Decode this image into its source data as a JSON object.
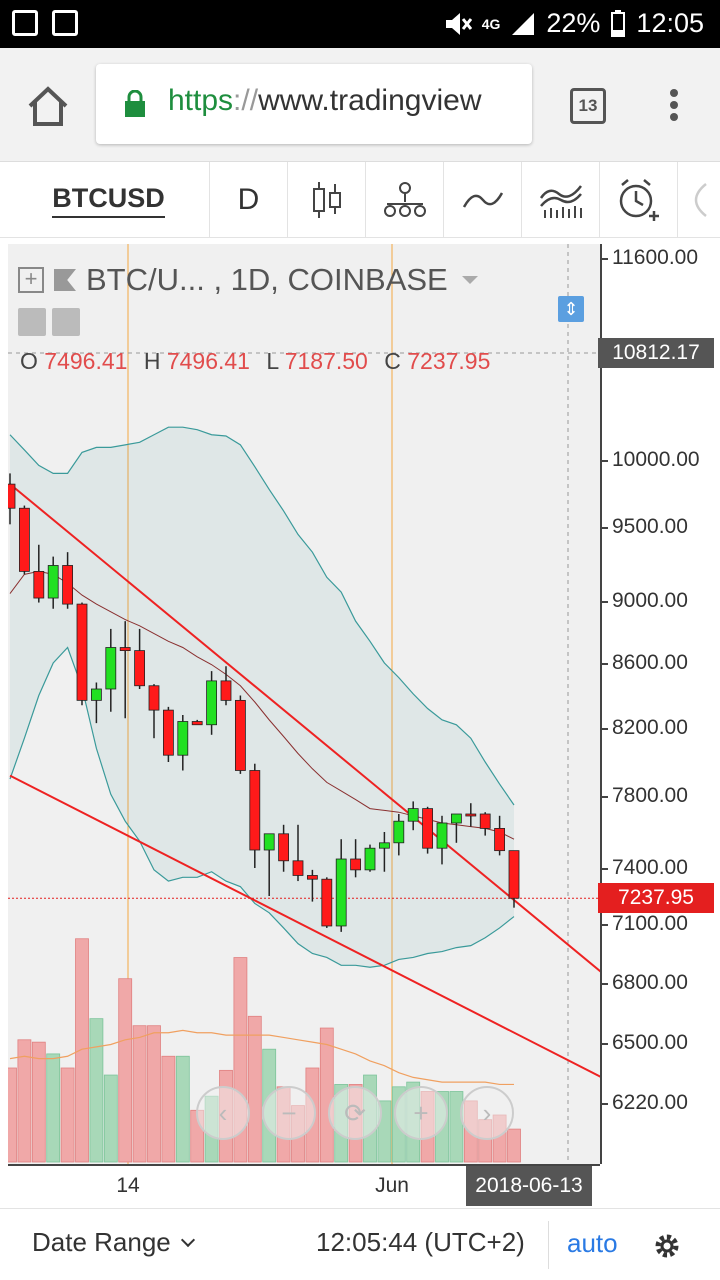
{
  "statusbar": {
    "network": "4G",
    "battery": "22%",
    "time": "12:05",
    "icons": [
      "gmail-icon",
      "image-notification-icon",
      "mute-icon",
      "signal-icon",
      "battery-icon"
    ]
  },
  "browser": {
    "url_scheme": "https",
    "url_sep": "://",
    "url_host": "www.tradingview",
    "tab_count": "13",
    "icons": [
      "home-icon",
      "lock-icon",
      "menu-icon"
    ]
  },
  "toolbar": {
    "symbol": "BTCUSD",
    "interval": "D",
    "tools": [
      "candles-icon",
      "indicators-icon",
      "line-tool-icon",
      "compare-icon",
      "alert-icon"
    ]
  },
  "chart": {
    "title": "BTC/U... , 1D, COINBASE",
    "ohlc": {
      "o_label": "O",
      "o": "7496.41",
      "h_label": "H",
      "h": "7496.41",
      "l_label": "L",
      "l": "7187.50",
      "c_label": "C",
      "c": "7237.95"
    },
    "price_labels": [
      "11600.00",
      "10000.00",
      "9500.00",
      "9000.00",
      "8600.00",
      "8200.00",
      "7800.00",
      "7400.00",
      "7100.00",
      "6800.00",
      "6500.00",
      "6220.00"
    ],
    "crosshair_price": "10812.17",
    "last_price": "7237.95",
    "time_labels": [
      "14",
      "Jun"
    ],
    "crosshair_time": "2018-06-13",
    "nav_buttons": [
      "‹",
      "−",
      "⟳",
      "+",
      "›"
    ],
    "colors": {
      "up": "#22e022",
      "down": "#ff1a1a",
      "trendline": "#ee2222",
      "bollinger": "#3a9a9a",
      "basis": "#8a3030",
      "volume_up": "#a8d8b8",
      "volume_down": "#f0a8a8",
      "volume_ma": "#f0a060"
    }
  },
  "chart_data": {
    "type": "candlestick",
    "symbol": "BTC/USD",
    "interval": "1D",
    "exchange": "COINBASE",
    "candles": [
      {
        "o": 9820,
        "h": 9900,
        "l": 9520,
        "c": 9640
      },
      {
        "o": 9640,
        "h": 9660,
        "l": 9180,
        "c": 9200
      },
      {
        "o": 9200,
        "h": 9380,
        "l": 8990,
        "c": 9020
      },
      {
        "o": 9020,
        "h": 9300,
        "l": 8950,
        "c": 9240
      },
      {
        "o": 9240,
        "h": 9330,
        "l": 8950,
        "c": 8980
      },
      {
        "o": 8980,
        "h": 8990,
        "l": 8340,
        "c": 8370
      },
      {
        "o": 8370,
        "h": 8480,
        "l": 8230,
        "c": 8440
      },
      {
        "o": 8440,
        "h": 8820,
        "l": 8300,
        "c": 8700
      },
      {
        "o": 8700,
        "h": 8870,
        "l": 8260,
        "c": 8680
      },
      {
        "o": 8680,
        "h": 8820,
        "l": 8440,
        "c": 8460
      },
      {
        "o": 8460,
        "h": 8470,
        "l": 8140,
        "c": 8310
      },
      {
        "o": 8310,
        "h": 8330,
        "l": 8000,
        "c": 8040
      },
      {
        "o": 8040,
        "h": 8280,
        "l": 7950,
        "c": 8240
      },
      {
        "o": 8240,
        "h": 8250,
        "l": 8220,
        "c": 8220
      },
      {
        "o": 8220,
        "h": 8550,
        "l": 8160,
        "c": 8490
      },
      {
        "o": 8490,
        "h": 8580,
        "l": 8340,
        "c": 8370
      },
      {
        "o": 8370,
        "h": 8400,
        "l": 7930,
        "c": 7950
      },
      {
        "o": 7950,
        "h": 7990,
        "l": 7400,
        "c": 7500
      },
      {
        "o": 7500,
        "h": 7590,
        "l": 7250,
        "c": 7590
      },
      {
        "o": 7590,
        "h": 7640,
        "l": 7380,
        "c": 7440
      },
      {
        "o": 7440,
        "h": 7640,
        "l": 7330,
        "c": 7360
      },
      {
        "o": 7360,
        "h": 7390,
        "l": 7220,
        "c": 7340
      },
      {
        "o": 7340,
        "h": 7350,
        "l": 7080,
        "c": 7090
      },
      {
        "o": 7090,
        "h": 7560,
        "l": 7060,
        "c": 7450
      },
      {
        "o": 7450,
        "h": 7560,
        "l": 7350,
        "c": 7390
      },
      {
        "o": 7390,
        "h": 7530,
        "l": 7380,
        "c": 7510
      },
      {
        "o": 7510,
        "h": 7600,
        "l": 7380,
        "c": 7540
      },
      {
        "o": 7540,
        "h": 7700,
        "l": 7470,
        "c": 7660
      },
      {
        "o": 7660,
        "h": 7770,
        "l": 7610,
        "c": 7730
      },
      {
        "o": 7730,
        "h": 7740,
        "l": 7480,
        "c": 7510
      },
      {
        "o": 7510,
        "h": 7690,
        "l": 7420,
        "c": 7650
      },
      {
        "o": 7650,
        "h": 7700,
        "l": 7540,
        "c": 7700
      },
      {
        "o": 7700,
        "h": 7760,
        "l": 7630,
        "c": 7700
      },
      {
        "o": 7700,
        "h": 7710,
        "l": 7580,
        "c": 7620
      },
      {
        "o": 7620,
        "h": 7690,
        "l": 7470,
        "c": 7496.41
      },
      {
        "o": 7496.41,
        "h": 7496.41,
        "l": 7187.5,
        "c": 7237.95
      }
    ],
    "volume_relative": [
      0.4,
      0.52,
      0.51,
      0.46,
      0.4,
      0.95,
      0.61,
      0.37,
      0.78,
      0.58,
      0.58,
      0.45,
      0.45,
      0.22,
      0.28,
      0.39,
      0.87,
      0.62,
      0.48,
      0.32,
      0.24,
      0.4,
      0.57,
      0.33,
      0.33,
      0.37,
      0.26,
      0.32,
      0.34,
      0.3,
      0.3,
      0.3,
      0.26,
      0.18,
      0.2,
      0.14
    ],
    "up_bars": [
      3,
      6,
      7,
      12,
      14,
      18,
      23,
      25,
      26,
      27,
      28,
      30,
      31
    ],
    "bollinger_upper": [
      10200,
      10080,
      9960,
      9900,
      9900,
      10060,
      10100,
      10100,
      10120,
      10140,
      10200,
      10260,
      10260,
      10240,
      10200,
      10190,
      10120,
      9950,
      9780,
      9620,
      9450,
      9330,
      9160,
      9060,
      8870,
      8740,
      8600,
      8510,
      8410,
      8320,
      8250,
      8220,
      8140,
      8000,
      7870,
      7750
    ],
    "bollinger_basis": [
      9050,
      9180,
      9200,
      9180,
      9120,
      9040,
      8980,
      8930,
      8880,
      8840,
      8790,
      8740,
      8700,
      8640,
      8590,
      8530,
      8460,
      8360,
      8250,
      8150,
      8050,
      7960,
      7880,
      7830,
      7780,
      7730,
      7720,
      7710,
      7690,
      7670,
      7650,
      7640,
      7630,
      7620,
      7600,
      7560
    ],
    "bollinger_lower": [
      7900,
      8140,
      8400,
      8600,
      8700,
      8450,
      8080,
      7810,
      7660,
      7550,
      7390,
      7330,
      7350,
      7350,
      7380,
      7330,
      7300,
      7210,
      7160,
      7080,
      7000,
      6950,
      6930,
      6890,
      6890,
      6880,
      6890,
      6920,
      6930,
      6950,
      6960,
      6980,
      6990,
      7030,
      7080,
      7140
    ],
    "trendlines": [
      {
        "from": [
          0,
          9820
        ],
        "to": [
          44,
          6680
        ]
      },
      {
        "from": [
          0,
          7920
        ],
        "to": [
          44,
          6240
        ]
      }
    ],
    "y_ticks": [
      11600,
      10000,
      9500,
      9000,
      8600,
      8200,
      7800,
      7400,
      7100,
      6800,
      6500,
      6220
    ],
    "x_ticks": [
      "14",
      "Jun"
    ],
    "vertical_markers": [
      "14",
      "Jun"
    ]
  }
}
